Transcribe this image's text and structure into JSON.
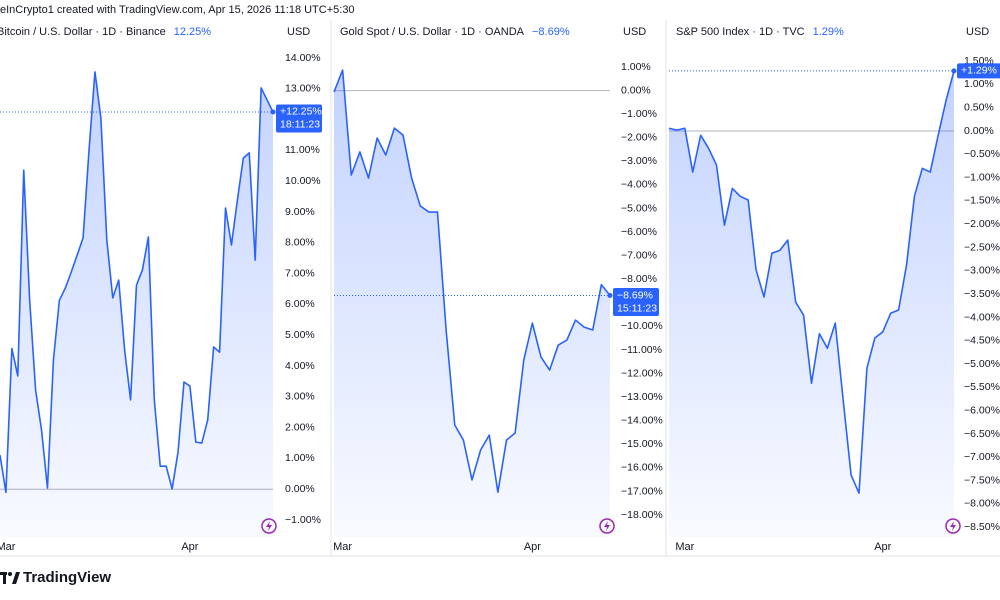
{
  "header": {
    "caption": "eInCrypto1 created with TradingView.com, Apr 15, 2026 11:18 UTC+5:30"
  },
  "chart_data": [
    {
      "type": "area",
      "title": "Bitcoin / U.S. Dollar · 1D · Binance",
      "change_label": "12.25%",
      "currency": "USD",
      "last_label": "+12.25%",
      "countdown": "18:11:23",
      "color": "#2962ff",
      "categories": [
        null,
        "Mar",
        null,
        null,
        null,
        null,
        null,
        null,
        null,
        null,
        null,
        null,
        null,
        null,
        null,
        null,
        null,
        null,
        null,
        null,
        null,
        null,
        null,
        null,
        null,
        null,
        null,
        null,
        null,
        null,
        null,
        null,
        "Apr",
        null,
        null,
        null,
        null,
        null,
        null,
        null,
        null,
        null,
        null,
        null,
        null,
        null,
        null
      ],
      "values": [
        1.11,
        -0.1,
        4.57,
        3.68,
        10.36,
        6.13,
        3.22,
        1.92,
        0.04,
        4.19,
        6.13,
        6.53,
        7.05,
        7.6,
        8.16,
        11.01,
        13.55,
        12.05,
        8.09,
        6.21,
        6.79,
        4.52,
        2.9,
        6.63,
        7.12,
        8.19,
        2.9,
        0.75,
        0.75,
        0.01,
        1.21,
        3.48,
        3.35,
        1.53,
        1.5,
        2.25,
        4.62,
        4.45,
        9.13,
        7.93,
        9.39,
        10.75,
        10.92,
        7.44,
        13.03,
        12.64,
        12.25
      ],
      "ylim": [
        -1.55,
        15.17
      ],
      "yticks": [
        {
          "value": 14,
          "label": "14.00%"
        },
        {
          "value": 13,
          "label": "13.00%"
        },
        {
          "value": 12,
          "label": "12.00%"
        },
        {
          "value": 11,
          "label": "11.00%"
        },
        {
          "value": 10,
          "label": "10.00%"
        },
        {
          "value": 9,
          "label": "9.00%"
        },
        {
          "value": 8,
          "label": "8.00%"
        },
        {
          "value": 7,
          "label": "7.00%"
        },
        {
          "value": 6,
          "label": "6.00%"
        },
        {
          "value": 5,
          "label": "5.00%"
        },
        {
          "value": 4,
          "label": "4.00%"
        },
        {
          "value": 3,
          "label": "3.00%"
        },
        {
          "value": 2,
          "label": "2.00%"
        },
        {
          "value": 1,
          "label": "1.00%"
        },
        {
          "value": 0,
          "label": "0.00%"
        },
        {
          "value": -1,
          "label": "−1.00%"
        }
      ]
    },
    {
      "type": "area",
      "title": "Gold Spot / U.S. Dollar · 1D · OANDA",
      "change_label": "−8.69%",
      "currency": "USD",
      "last_label": "−8.69%",
      "countdown": "15:11:23",
      "color": "#2962ff",
      "categories": [
        null,
        "Mar",
        null,
        null,
        null,
        null,
        null,
        null,
        null,
        null,
        null,
        null,
        null,
        null,
        null,
        null,
        null,
        null,
        null,
        null,
        null,
        null,
        null,
        "Apr",
        null,
        null,
        null,
        null,
        null,
        null,
        null,
        null,
        null
      ],
      "values": [
        -0.06,
        0.87,
        -3.58,
        -2.6,
        -3.71,
        -2.01,
        -2.73,
        -1.59,
        -1.88,
        -3.71,
        -4.89,
        -5.15,
        -5.15,
        -10.15,
        -14.18,
        -14.82,
        -16.51,
        -15.24,
        -14.61,
        -17.03,
        -14.82,
        -14.52,
        -11.43,
        -9.86,
        -11.3,
        -11.85,
        -10.79,
        -10.58,
        -9.73,
        -10.03,
        -10.15,
        -8.23,
        -8.69
      ],
      "ylim": [
        -18.93,
        2.91
      ],
      "yticks": [
        {
          "value": 1,
          "label": "1.00%"
        },
        {
          "value": 0,
          "label": "0.00%"
        },
        {
          "value": -1,
          "label": "−1.00%"
        },
        {
          "value": -2,
          "label": "−2.00%"
        },
        {
          "value": -3,
          "label": "−3.00%"
        },
        {
          "value": -4,
          "label": "−4.00%"
        },
        {
          "value": -5,
          "label": "−5.00%"
        },
        {
          "value": -6,
          "label": "−6.00%"
        },
        {
          "value": -7,
          "label": "−7.00%"
        },
        {
          "value": -8,
          "label": "−8.00%"
        },
        {
          "value": -9,
          "label": "−9.00%"
        },
        {
          "value": -10,
          "label": "−10.00%"
        },
        {
          "value": -11,
          "label": "−11.00%"
        },
        {
          "value": -12,
          "label": "−12.00%"
        },
        {
          "value": -13,
          "label": "−13.00%"
        },
        {
          "value": -14,
          "label": "−14.00%"
        },
        {
          "value": -15,
          "label": "−15.00%"
        },
        {
          "value": -16,
          "label": "−16.00%"
        },
        {
          "value": -17,
          "label": "−17.00%"
        },
        {
          "value": -18,
          "label": "−18.00%"
        }
      ]
    },
    {
      "type": "area",
      "title": "S&P 500 Index · 1D · TVC",
      "change_label": "1.29%",
      "currency": "USD",
      "last_label": "+1.29%",
      "color": "#2962ff",
      "categories": [
        null,
        null,
        "Mar",
        null,
        null,
        null,
        null,
        null,
        null,
        null,
        null,
        null,
        null,
        null,
        null,
        null,
        null,
        null,
        null,
        null,
        null,
        null,
        null,
        null,
        null,
        null,
        null,
        "Apr",
        null,
        null,
        null,
        null,
        null,
        null,
        null,
        null,
        null
      ],
      "values": [
        0.06,
        0.02,
        0.06,
        -0.88,
        -0.09,
        -0.37,
        -0.73,
        -2.02,
        -1.23,
        -1.4,
        -1.48,
        -2.98,
        -3.56,
        -2.62,
        -2.56,
        -2.34,
        -3.67,
        -3.95,
        -5.41,
        -4.35,
        -4.66,
        -4.12,
        -5.77,
        -7.38,
        -7.77,
        -5.09,
        -4.44,
        -4.31,
        -3.91,
        -3.84,
        -2.88,
        -1.4,
        -0.8,
        -0.88,
        -0.09,
        0.66,
        1.29
      ],
      "ylim": [
        -8.71,
        2.34
      ],
      "yticks": [
        {
          "value": 1.5,
          "label": "1.50%"
        },
        {
          "value": 1,
          "label": "1.00%"
        },
        {
          "value": 0.5,
          "label": "0.50%"
        },
        {
          "value": 0,
          "label": "0.00%"
        },
        {
          "value": -0.5,
          "label": "−0.50%"
        },
        {
          "value": -1,
          "label": "−1.00%"
        },
        {
          "value": -1.5,
          "label": "−1.50%"
        },
        {
          "value": -2,
          "label": "−2.00%"
        },
        {
          "value": -2.5,
          "label": "−2.50%"
        },
        {
          "value": -3,
          "label": "−3.00%"
        },
        {
          "value": -3.5,
          "label": "−3.50%"
        },
        {
          "value": -4,
          "label": "−4.00%"
        },
        {
          "value": -4.5,
          "label": "−4.50%"
        },
        {
          "value": -5,
          "label": "−5.00%"
        },
        {
          "value": -5.5,
          "label": "−5.50%"
        },
        {
          "value": -6,
          "label": "−6.00%"
        },
        {
          "value": -6.5,
          "label": "−6.50%"
        },
        {
          "value": -7,
          "label": "−7.00%"
        },
        {
          "value": -7.5,
          "label": "−7.50%"
        },
        {
          "value": -8,
          "label": "−8.00%"
        },
        {
          "value": -8.5,
          "label": "−8.50%"
        }
      ]
    }
  ],
  "footer": {
    "brand": "TradingView"
  }
}
